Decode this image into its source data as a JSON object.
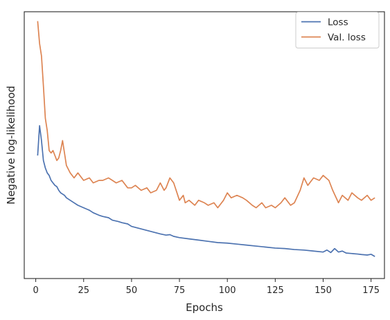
{
  "chart_data": {
    "type": "line",
    "xlabel": "Epochs",
    "ylabel": "Negative log-likelihood",
    "xlim": [
      -6,
      182
    ],
    "ylim": [
      0,
      100
    ],
    "x_ticks": [
      0,
      25,
      50,
      75,
      100,
      125,
      150,
      175
    ],
    "y_ticks_labeled": false,
    "grid": false,
    "legend_position": "top-right",
    "series": [
      {
        "name": "Loss",
        "color": "#4c72b0",
        "x": [
          1,
          2,
          3,
          4,
          5,
          6,
          7,
          8,
          9,
          10,
          11,
          12,
          13,
          14,
          15,
          16,
          18,
          20,
          22,
          25,
          28,
          30,
          33,
          35,
          38,
          40,
          43,
          45,
          48,
          50,
          55,
          60,
          65,
          68,
          70,
          72,
          75,
          80,
          85,
          90,
          95,
          100,
          105,
          110,
          115,
          120,
          125,
          130,
          135,
          140,
          145,
          150,
          152,
          154,
          156,
          158,
          160,
          162,
          165,
          168,
          170,
          173,
          175,
          177
        ],
        "values": [
          45,
          57,
          51,
          43,
          40,
          38,
          37,
          35,
          34,
          33,
          32.5,
          31,
          30,
          29.5,
          29,
          28,
          27,
          26,
          25,
          24,
          23,
          22,
          21,
          20.5,
          20,
          19,
          18.5,
          18,
          17.5,
          16.5,
          15.5,
          14.5,
          13.5,
          13,
          13.2,
          12.5,
          12,
          11.5,
          11,
          10.5,
          10,
          9.8,
          9.4,
          9,
          8.6,
          8.2,
          7.8,
          7.6,
          7.2,
          7,
          6.6,
          6.2,
          7,
          6,
          7.6,
          6.2,
          6.6,
          5.8,
          5.6,
          5.4,
          5.2,
          5,
          5.3,
          4.4
        ]
      },
      {
        "name": "Val. loss",
        "color": "#dd8452",
        "x": [
          1,
          2,
          3,
          4,
          5,
          6,
          7,
          8,
          9,
          10,
          11,
          12,
          13,
          14,
          15,
          16,
          18,
          20,
          22,
          25,
          28,
          30,
          33,
          35,
          38,
          40,
          42,
          45,
          48,
          50,
          52,
          55,
          58,
          60,
          63,
          65,
          67,
          68,
          70,
          72,
          75,
          77,
          78,
          80,
          83,
          85,
          88,
          90,
          93,
          95,
          98,
          100,
          102,
          105,
          108,
          110,
          113,
          115,
          118,
          120,
          123,
          125,
          128,
          130,
          133,
          135,
          138,
          140,
          142,
          145,
          148,
          150,
          153,
          155,
          158,
          160,
          163,
          165,
          168,
          170,
          173,
          175,
          177
        ],
        "values": [
          99,
          90,
          85,
          73,
          60,
          55,
          47,
          46,
          47,
          45,
          43,
          44,
          47,
          51,
          46,
          41,
          38,
          36,
          38,
          35,
          36,
          34,
          35,
          35,
          36,
          35,
          34,
          35,
          32,
          32,
          33,
          31,
          32,
          30,
          31,
          34,
          31,
          32,
          36,
          34,
          27,
          29,
          26,
          27,
          25,
          27,
          26,
          25,
          26,
          24,
          27,
          30,
          28,
          29,
          28,
          27,
          25,
          24,
          26,
          24,
          25,
          24,
          26,
          28,
          25,
          26,
          31,
          36,
          33,
          36,
          35,
          37,
          35,
          31,
          26,
          29,
          27,
          30,
          28,
          27,
          29,
          27,
          28
        ]
      }
    ]
  }
}
